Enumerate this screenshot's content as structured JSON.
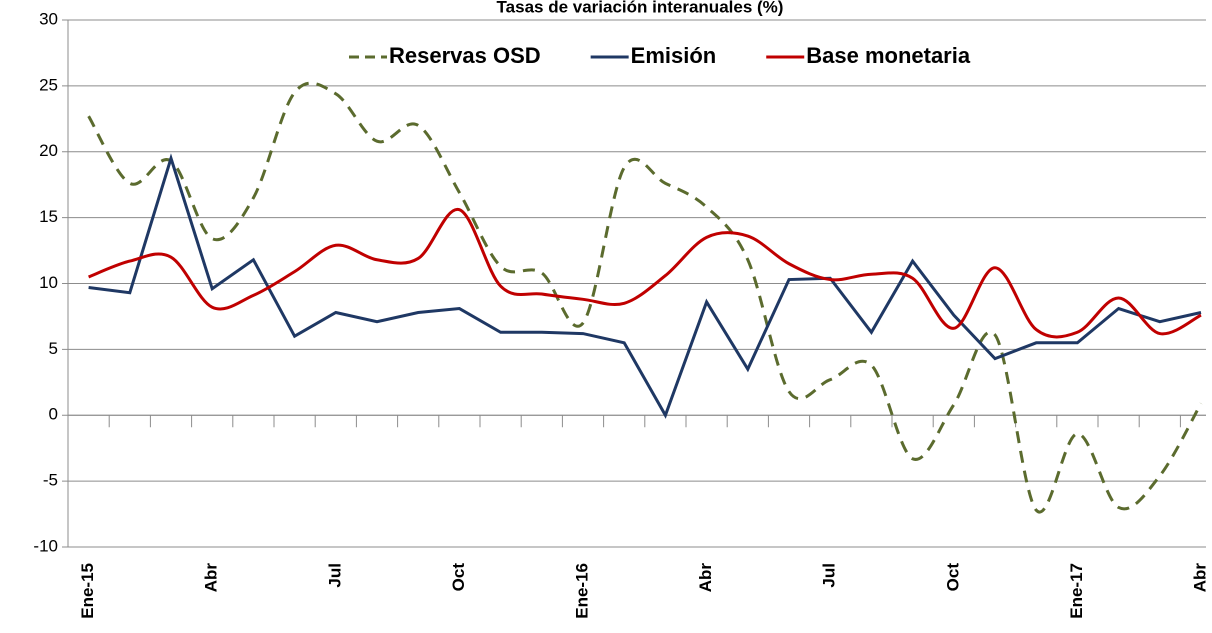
{
  "chart_data": {
    "type": "line",
    "title": "Tasas de variación interanuales (%)",
    "categories": [
      "Ene-15",
      null,
      null,
      "Abr",
      null,
      null,
      "Jul",
      null,
      null,
      "Oct",
      null,
      null,
      "Ene-16",
      null,
      null,
      "Abr",
      null,
      null,
      "Jul",
      null,
      null,
      "Oct",
      null,
      null,
      "Ene-17",
      null,
      null,
      "Abr"
    ],
    "series": [
      {
        "name": "Reservas OSD",
        "color": "#5b6b2e",
        "dash": true,
        "smooth": true,
        "values": [
          22.7,
          17.6,
          19.3,
          13.4,
          16.5,
          24.5,
          24.4,
          20.8,
          22.0,
          16.9,
          11.3,
          10.8,
          7.0,
          18.8,
          17.6,
          15.8,
          11.8,
          1.8,
          2.7,
          3.8,
          -3.3,
          0.8,
          6.1,
          -7.2,
          -1.4,
          -7.0,
          -4.6,
          0.9
        ]
      },
      {
        "name": "Emisión",
        "color": "#1f3864",
        "dash": false,
        "smooth": false,
        "values": [
          9.7,
          9.3,
          19.5,
          9.6,
          11.8,
          6.0,
          7.8,
          7.1,
          7.8,
          8.1,
          6.3,
          6.3,
          6.2,
          5.5,
          0.0,
          8.6,
          3.5,
          10.3,
          10.4,
          6.3,
          11.7,
          7.6,
          4.3,
          5.5,
          5.5,
          8.1,
          7.1,
          7.8
        ]
      },
      {
        "name": "Base monetaria",
        "color": "#c00000",
        "dash": false,
        "smooth": true,
        "values": [
          10.5,
          11.7,
          12.0,
          8.2,
          9.1,
          10.9,
          12.9,
          11.8,
          11.9,
          15.6,
          9.8,
          9.2,
          8.8,
          8.5,
          10.6,
          13.5,
          13.6,
          11.5,
          10.3,
          10.7,
          10.4,
          6.6,
          11.2,
          6.5,
          6.3,
          8.9,
          6.2,
          7.6
        ]
      }
    ],
    "ylim": [
      -10,
      30
    ],
    "yticks": [
      -10,
      -5,
      0,
      5,
      10,
      15,
      20,
      25,
      30
    ],
    "grid": true,
    "legend": "top"
  }
}
